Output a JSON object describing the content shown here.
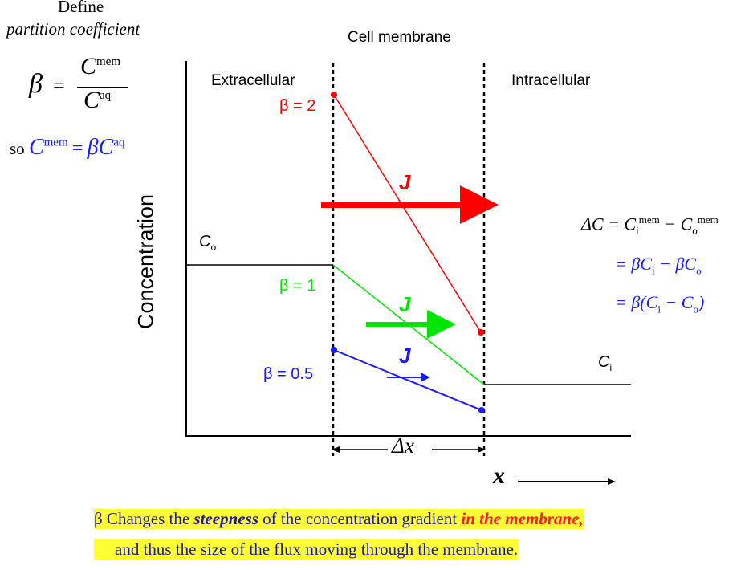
{
  "left_panel": {
    "define_title": "Define",
    "define_subtitle": "partition coefficient",
    "beta_symbol": "β",
    "equals": "=",
    "numerator_base": "C",
    "numerator_sup": "mem",
    "denominator_base": "C",
    "denominator_sup": "aq",
    "so_text": "so",
    "so_lhs_base": "C",
    "so_lhs_sup": "mem",
    "so_eq": "=",
    "so_rhs_base": "βC",
    "so_rhs_sup": "aq"
  },
  "diagram": {
    "cell_membrane_label": "Cell membrane",
    "extracellular_label": "Extracellular",
    "intracellular_label": "Intracellular",
    "ylabel": "Concentration",
    "co_base": "C",
    "co_sub": "o",
    "ci_base": "C",
    "ci_sub": "i",
    "beta2_label": "β = 2",
    "beta1_label": "β = 1",
    "beta05_label": "β = 0.5",
    "flux_label": "J",
    "dx_label": "Δx",
    "x_label": "x",
    "colors": {
      "beta2": "#ff0000",
      "beta1": "#00e600",
      "beta05": "#1a1aff",
      "axis": "#000000"
    }
  },
  "delta_c": {
    "line1_lhs": "ΔC = C",
    "line1_sub1": "i",
    "line1_sup1": "mem",
    "line1_mid": " − C",
    "line1_sub2": "o",
    "line1_sup2": "mem",
    "line2_pre": "= βC",
    "line2_sub1": "i",
    "line2_mid": " − βC",
    "line2_sub2": "o",
    "line3_pre": "= β(C",
    "line3_sub1": "i",
    "line3_mid": " − C",
    "line3_sub2": "o",
    "line3_post": ")"
  },
  "caption": {
    "line1_pre": "β Changes the ",
    "line1_bold": "steepness",
    "line1_mid": " of the concentration gradient ",
    "line1_red": "in the membrane",
    "line1_comma": ",",
    "line2": "and thus the size of the flux moving through the membrane."
  }
}
